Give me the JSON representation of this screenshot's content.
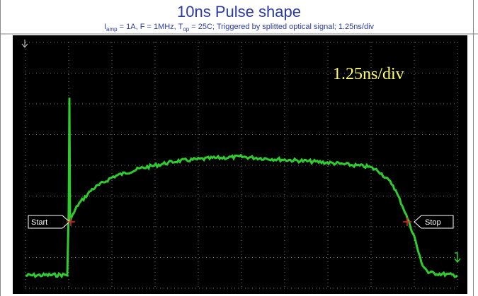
{
  "header": {
    "title": "10ns Pulse shape",
    "subtitle_parts": [
      "I",
      "amp",
      " = 1A, F = 1MHz, T",
      "op",
      " = 25C; Triggered by splitted optical signal; 1.25ns/div"
    ]
  },
  "scope": {
    "timebase_label": "1.25ns/div",
    "start_marker": "Start",
    "stop_marker": "Stop"
  }
}
